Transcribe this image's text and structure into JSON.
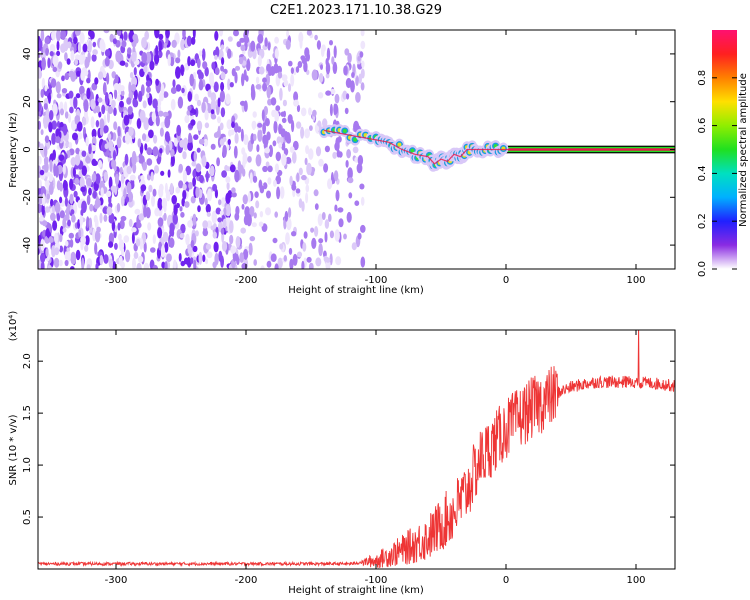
{
  "title": "C2E1.2023.171.10.38.G29",
  "colors": {
    "spectrum_low": "#cbb2f3",
    "spectrum_mid": "#7a2ff5",
    "signal_track": "#e8144a",
    "snr_line": "#ee3535"
  },
  "chart_data": [
    {
      "type": "heatmap",
      "xlabel": "Height of straight line (km)",
      "ylabel": "Frequency (Hz)",
      "xlim": [
        -360,
        130
      ],
      "ylim": [
        -50,
        50
      ],
      "x_ticks": [
        -300,
        -200,
        -100,
        0,
        100
      ],
      "y_ticks": [
        -40,
        -20,
        0,
        20,
        40
      ],
      "colorbar": {
        "label": "Normalized spectral amplitude",
        "range": [
          0.0,
          1.0
        ],
        "ticks": [
          "0.0",
          "0.2",
          "0.4",
          "0.6",
          "0.8"
        ]
      },
      "signal_track": {
        "x": [
          -140,
          -120,
          -100,
          -90,
          -80,
          -70,
          -60,
          -55,
          -50,
          -45,
          -40,
          -35,
          -30,
          -20,
          -10,
          0,
          50,
          100,
          130
        ],
        "y": [
          8,
          6,
          4,
          3,
          0,
          -2,
          -3,
          -6,
          -4,
          -5,
          -2,
          -3,
          0,
          0,
          0,
          0,
          0,
          0,
          0
        ]
      },
      "noise_region_x": [
        -360,
        -110
      ]
    },
    {
      "type": "line",
      "xlabel": "Height of straight line (km)",
      "ylabel": "SNR (10 * v/v)",
      "y_scale_label": "(x10⁴)",
      "xlim": [
        -360,
        130
      ],
      "ylim": [
        0,
        2.3
      ],
      "x_ticks": [
        -300,
        -200,
        -100,
        0,
        100
      ],
      "y_ticks": [
        0.5,
        1.0,
        1.5,
        2.0
      ],
      "y_tick_labels": [
        "0.5",
        "1.0",
        "1.5",
        "2.0"
      ],
      "series": [
        {
          "x": [
            -360,
            -300,
            -200,
            -120,
            -100,
            -80,
            -60,
            -40,
            -30,
            -20,
            -10,
            0,
            10,
            20,
            30,
            40,
            50,
            60,
            70,
            80,
            90,
            100,
            110,
            120,
            130
          ],
          "values": [
            0.05,
            0.05,
            0.05,
            0.05,
            0.08,
            0.18,
            0.3,
            0.55,
            0.75,
            1.05,
            1.2,
            1.35,
            1.45,
            1.55,
            1.62,
            1.7,
            1.75,
            1.78,
            1.8,
            1.8,
            1.8,
            1.8,
            1.79,
            1.78,
            1.76
          ]
        }
      ]
    }
  ]
}
